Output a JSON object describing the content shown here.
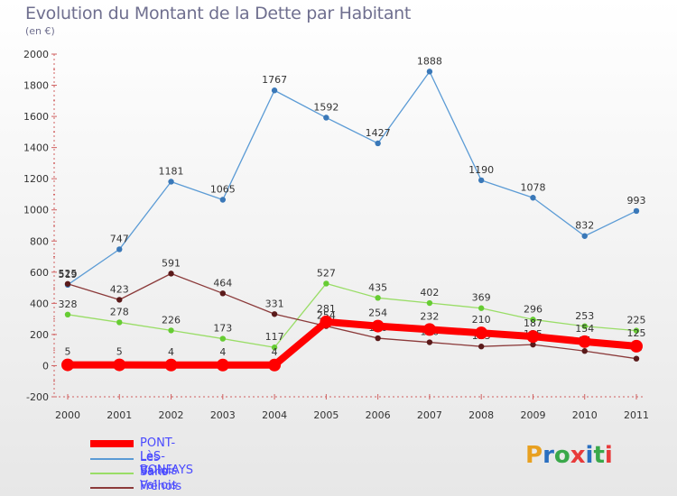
{
  "header": {
    "title": "Evolution du Montant de la Dette par Habitant",
    "subtitle": "(en €)"
  },
  "logo": {
    "text": "Proxiti",
    "colors": [
      "#e8a020",
      "#2a6fc0",
      "#3aa84a",
      "#e83a3a",
      "#2a6fc0",
      "#3aa84a",
      "#e83a3a"
    ]
  },
  "chart_data": {
    "type": "line",
    "title": "Evolution du Montant de la Dette par Habitant",
    "subtitle": "(en €)",
    "xlabel": "",
    "ylabel": "",
    "x": [
      "2000",
      "2001",
      "2002",
      "2003",
      "2004",
      "2005",
      "2006",
      "2007",
      "2008",
      "2009",
      "2010",
      "2011"
    ],
    "ylim": [
      -200,
      2000
    ],
    "yticks": [
      -200,
      0,
      200,
      400,
      600,
      800,
      1000,
      1200,
      1400,
      1600,
      1800,
      2000
    ],
    "ytick_labels": [
      "-200",
      "0",
      "200",
      "400",
      "600",
      "800",
      "1000",
      "1200",
      "1400",
      "1600",
      "1800",
      "2000"
    ],
    "grid": false,
    "legend_position": "bottom-left",
    "series": [
      {
        "name": "Les Vallois",
        "color": "#5b9bd5",
        "marker": "#3a78b8",
        "values": [
          519,
          747,
          1181,
          1065,
          1767,
          1592,
          1427,
          1888,
          1190,
          1078,
          832,
          993
        ],
        "labels": [
          "519",
          "747",
          "1181",
          "1065",
          "1767",
          "1592",
          "1427",
          "1888",
          "1190",
          "1078",
          "832",
          "993"
        ]
      },
      {
        "name": "Sans-Vallois",
        "color": "#99dd66",
        "marker": "#66cc33",
        "values": [
          328,
          278,
          226,
          173,
          117,
          527,
          435,
          402,
          369,
          296,
          253,
          225
        ],
        "labels": [
          "328",
          "278",
          "226",
          "173",
          "117",
          "527",
          "435",
          "402",
          "369",
          "296",
          "253",
          "225"
        ]
      },
      {
        "name": "Frénois",
        "color": "#8b3a3a",
        "marker": "#5a1a1a",
        "values": [
          525,
          423,
          591,
          464,
          331,
          254,
          176,
          150,
          123,
          135,
          94,
          45
        ],
        "labels": [
          "525",
          "423",
          "591",
          "464",
          "331",
          "254",
          "176",
          "150",
          "123",
          "135",
          "94",
          "45"
        ]
      },
      {
        "name": "PONT-LèS-BONFAYS",
        "color": "#ff0000",
        "marker": "#ff0000",
        "values": [
          5,
          5,
          4,
          4,
          4,
          281,
          254,
          232,
          210,
          187,
          154,
          125
        ],
        "labels": [
          "5",
          "5",
          "4",
          "4",
          "4",
          "281",
          "254",
          "232",
          "210",
          "187",
          "154",
          "125"
        ]
      }
    ]
  }
}
